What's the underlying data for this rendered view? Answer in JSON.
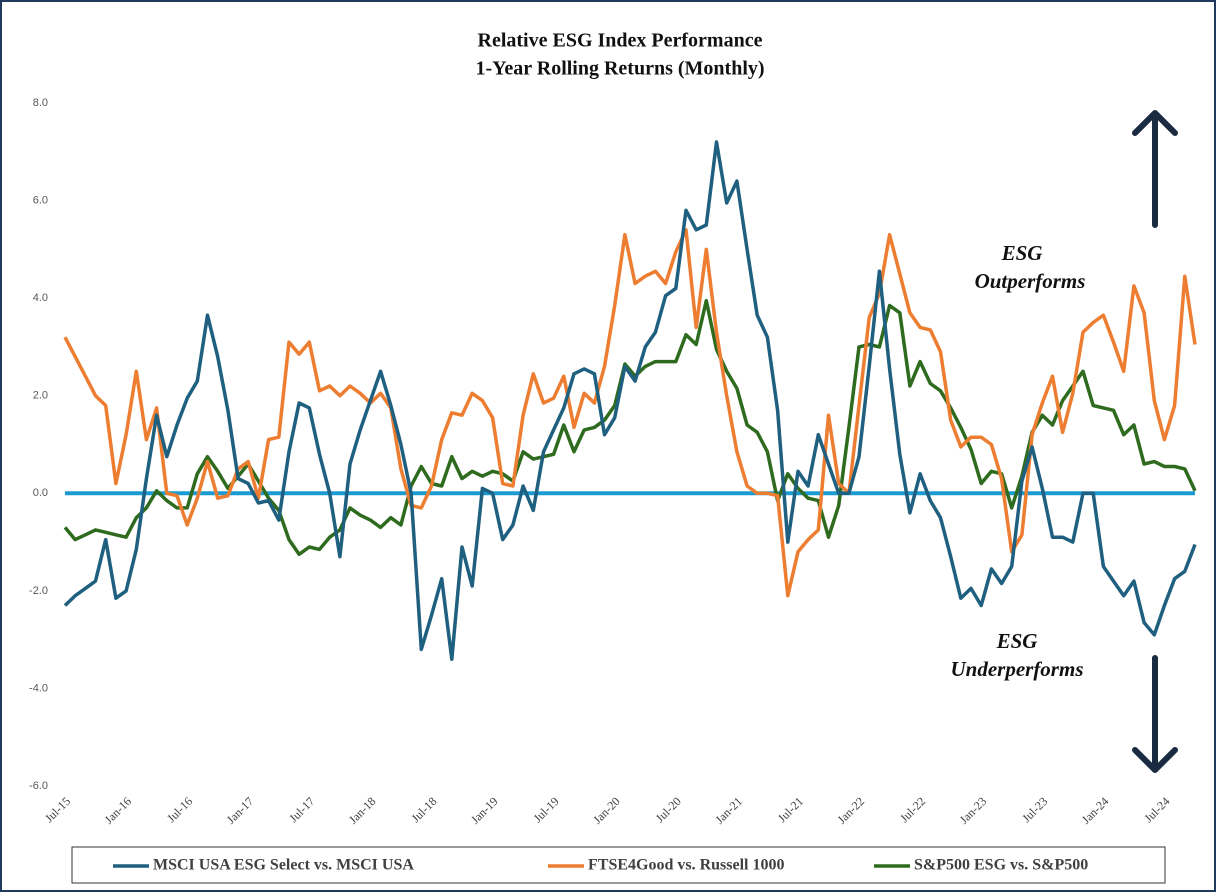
{
  "chart_data": {
    "type": "line",
    "title": "Relative ESG Index Performance",
    "subtitle": "1-Year Rolling Returns (Monthly)",
    "categories": [
      "Jul-15",
      null,
      null,
      null,
      null,
      null,
      "Jan-16",
      null,
      null,
      null,
      null,
      null,
      "Jul-16",
      null,
      null,
      null,
      null,
      null,
      "Jan-17",
      null,
      null,
      null,
      null,
      null,
      "Jul-17",
      null,
      null,
      null,
      null,
      null,
      "Jan-18",
      null,
      null,
      null,
      null,
      null,
      "Jul-18",
      null,
      null,
      null,
      null,
      null,
      "Jan-19",
      null,
      null,
      null,
      null,
      null,
      "Jul-19",
      null,
      null,
      null,
      null,
      null,
      "Jan-20",
      null,
      null,
      null,
      null,
      null,
      "Jul-20",
      null,
      null,
      null,
      null,
      null,
      "Jan-21",
      null,
      null,
      null,
      null,
      null,
      "Jul-21",
      null,
      null,
      null,
      null,
      null,
      "Jan-22",
      null,
      null,
      null,
      null,
      null,
      "Jul-22",
      null,
      null,
      null,
      null,
      null,
      "Jan-23",
      null,
      null,
      null,
      null,
      null,
      "Jul-23",
      null,
      null,
      null,
      null,
      null,
      "Jan-24",
      null,
      null,
      null,
      null,
      null,
      "Jul-24",
      null,
      null,
      null
    ],
    "series": [
      {
        "name": "MSCI USA ESG Select vs. MSCI USA",
        "color": "#1f5f7f",
        "values": [
          -2.3,
          -2.1,
          -1.95,
          -1.8,
          -0.95,
          -2.15,
          -2.0,
          -1.15,
          0.3,
          1.6,
          0.75,
          1.4,
          1.95,
          2.3,
          3.65,
          2.8,
          1.7,
          0.3,
          0.2,
          -0.2,
          -0.15,
          -0.55,
          0.85,
          1.85,
          1.75,
          0.8,
          0.0,
          -1.3,
          0.6,
          1.3,
          1.9,
          2.5,
          1.8,
          1.0,
          0.0,
          -3.2,
          -2.5,
          -1.75,
          -3.4,
          -1.1,
          -1.9,
          0.1,
          0.0,
          -0.95,
          -0.65,
          0.15,
          -0.35,
          0.85,
          1.3,
          1.75,
          2.45,
          2.55,
          2.45,
          1.2,
          1.55,
          2.6,
          2.3,
          3.0,
          3.3,
          4.05,
          4.2,
          5.8,
          5.4,
          5.5,
          7.2,
          5.95,
          6.4,
          5.0,
          3.65,
          3.2,
          1.7,
          -1.0,
          0.45,
          0.15,
          1.2,
          0.6,
          0.0,
          0.0,
          0.75,
          2.6,
          4.55,
          2.55,
          0.8,
          -0.4,
          0.4,
          -0.15,
          -0.5,
          -1.3,
          -2.15,
          -1.95,
          -2.3,
          -1.55,
          -1.85,
          -1.5,
          0.25,
          0.95,
          0.1,
          -0.9,
          -0.9,
          -1.0,
          0.0,
          0.0,
          -1.5,
          -1.8,
          -2.1,
          -1.8,
          -2.65,
          -2.9,
          -2.3,
          -1.75,
          -1.6,
          -1.05
        ]
      },
      {
        "name": "FTSE4Good vs. Russell 1000",
        "color": "#ed7d31",
        "values": [
          3.2,
          2.8,
          2.4,
          2.0,
          1.8,
          0.2,
          1.2,
          2.5,
          1.1,
          1.75,
          0.0,
          -0.05,
          -0.65,
          -0.1,
          0.65,
          -0.1,
          -0.05,
          0.5,
          0.65,
          -0.1,
          1.1,
          1.15,
          3.1,
          2.85,
          3.1,
          2.1,
          2.2,
          2.0,
          2.2,
          2.05,
          1.85,
          2.05,
          1.75,
          0.5,
          -0.25,
          -0.3,
          0.15,
          1.1,
          1.65,
          1.6,
          2.05,
          1.9,
          1.55,
          0.2,
          0.15,
          1.6,
          2.45,
          1.85,
          1.95,
          2.4,
          1.35,
          2.05,
          1.85,
          2.6,
          3.85,
          5.3,
          4.3,
          4.45,
          4.55,
          4.3,
          4.95,
          5.4,
          3.4,
          5.0,
          3.3,
          2.0,
          0.85,
          0.15,
          0.0,
          0.0,
          -0.05,
          -2.1,
          -1.2,
          -0.95,
          -0.75,
          1.6,
          0.2,
          0.0,
          1.8,
          3.6,
          4.1,
          5.3,
          4.5,
          3.7,
          3.4,
          3.35,
          2.9,
          1.5,
          0.95,
          1.15,
          1.15,
          1.0,
          0.3,
          -1.2,
          -0.85,
          1.2,
          1.85,
          2.4,
          1.25,
          2.05,
          3.3,
          3.5,
          3.65,
          3.1,
          2.5,
          4.25,
          3.7,
          1.9,
          1.1,
          1.8,
          4.45,
          3.05
        ]
      },
      {
        "name": "S&P500 ESG vs. S&P500",
        "color": "#2e6b1e",
        "values": [
          -0.7,
          -0.95,
          -0.85,
          -0.75,
          -0.8,
          -0.85,
          -0.9,
          -0.5,
          -0.3,
          0.05,
          -0.15,
          -0.3,
          -0.3,
          0.4,
          0.75,
          0.45,
          0.1,
          0.35,
          0.6,
          0.25,
          -0.1,
          -0.35,
          -0.95,
          -1.25,
          -1.1,
          -1.15,
          -0.9,
          -0.75,
          -0.3,
          -0.45,
          -0.55,
          -0.7,
          -0.5,
          -0.65,
          0.15,
          0.55,
          0.2,
          0.15,
          0.75,
          0.3,
          0.45,
          0.35,
          0.45,
          0.4,
          0.25,
          0.85,
          0.7,
          0.75,
          0.8,
          1.4,
          0.85,
          1.3,
          1.35,
          1.5,
          1.8,
          2.65,
          2.4,
          2.6,
          2.7,
          2.7,
          2.7,
          3.25,
          3.05,
          3.95,
          2.95,
          2.5,
          2.15,
          1.4,
          1.25,
          0.85,
          -0.15,
          0.4,
          0.1,
          -0.1,
          -0.15,
          -0.9,
          -0.25,
          1.35,
          3.0,
          3.05,
          3.0,
          3.85,
          3.7,
          2.2,
          2.7,
          2.25,
          2.1,
          1.75,
          1.35,
          0.9,
          0.2,
          0.45,
          0.4,
          -0.3,
          0.35,
          1.25,
          1.6,
          1.4,
          1.9,
          2.2,
          2.5,
          1.8,
          1.75,
          1.7,
          1.2,
          1.4,
          0.6,
          0.65,
          0.55,
          0.55,
          0.5,
          0.05
        ]
      }
    ],
    "ylim": [
      -6,
      8
    ],
    "yticks": [
      {
        "value": -6,
        "label": "-6.0"
      },
      {
        "value": -4,
        "label": "-4.0"
      },
      {
        "value": -2,
        "label": "-2.0"
      },
      {
        "value": 0,
        "label": "0.0"
      },
      {
        "value": 2,
        "label": "2.0"
      },
      {
        "value": 4,
        "label": "4.0"
      },
      {
        "value": 6,
        "label": "6.0"
      },
      {
        "value": 8,
        "label": "8.0"
      }
    ],
    "grid": false,
    "reference_line": {
      "value": 0,
      "color": "#1b9bd1"
    },
    "annotations": [
      {
        "lines": [
          "ESG",
          "Outperforms"
        ]
      },
      {
        "lines": [
          "ESG",
          "Underperforms"
        ]
      }
    ],
    "legend": "bottom"
  }
}
